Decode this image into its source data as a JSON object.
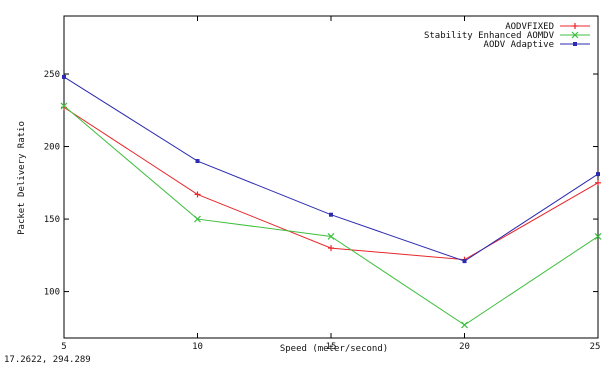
{
  "status_bar": {
    "coordinates": "17.2622,  294.289"
  },
  "chart_data": {
    "type": "line",
    "title": "",
    "xlabel": "Speed (meter/second)",
    "ylabel": "Packet Delivery Ratio",
    "x": [
      5,
      10,
      15,
      20,
      25
    ],
    "xlim": [
      5,
      25
    ],
    "ylim": [
      68,
      290
    ],
    "x_ticks": [
      5,
      10,
      15,
      20,
      25
    ],
    "y_ticks": [
      100,
      150,
      200,
      250
    ],
    "grid": false,
    "legend_position": "top-right",
    "series": [
      {
        "name": "AODVFIXED",
        "color": "#e8262b",
        "marker": "plus",
        "values": [
          227,
          167,
          130,
          122,
          175
        ]
      },
      {
        "name": "Stability Enhanced AOMDV",
        "color": "#3fbf3f",
        "marker": "cross",
        "values": [
          228,
          150,
          138,
          77,
          138
        ]
      },
      {
        "name": "AODV Adaptive",
        "color": "#2b2bb0",
        "marker": "square",
        "values": [
          248,
          190,
          153,
          121,
          181
        ]
      }
    ]
  }
}
